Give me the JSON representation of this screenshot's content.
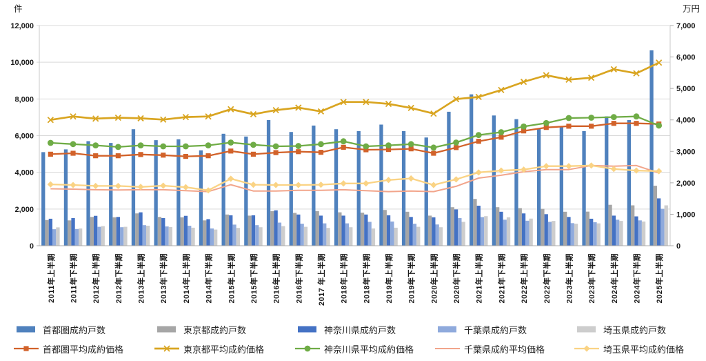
{
  "chart_data": {
    "type": "bar+line",
    "title": "",
    "left_axis": {
      "title": "件",
      "min": 0,
      "max": 12000,
      "step": 2000,
      "tick_labels": [
        "0",
        "2,000",
        "4,000",
        "6,000",
        "8,000",
        "10,000",
        "12,000"
      ]
    },
    "right_axis": {
      "title": "万円",
      "min": 0,
      "max": 7000,
      "step": 1000,
      "tick_labels": [
        "0",
        "1,000",
        "2,000",
        "3,000",
        "4,000",
        "5,000",
        "6,000",
        "7,000"
      ]
    },
    "grid": "horizontal, light gray",
    "legend_position": "bottom, two rows",
    "categories": [
      "2011年上半期",
      "2011年下半期",
      "2012年上半期",
      "2012年下半期",
      "2013年上半期",
      "2013年下半期",
      "2014年上半期",
      "2014年下半期",
      "2015年上半期",
      "2015年下半期",
      "2016年上半期",
      "2016年下半期",
      "2017 年上半期",
      "2018年上半期",
      "2018年下半期",
      "2019年上半期",
      "2019年下半期",
      "2020年上半期",
      "2020年下半期",
      "2021年上半期",
      "2021年下半期",
      "2022年上半期",
      "2022年下半期",
      "2023年上半期",
      "2023年下半期",
      "2024年上半期",
      "2024年下半期",
      "2025年上半期"
    ],
    "bar_series": [
      {
        "name": "首都圏成約戸数",
        "axis": "left",
        "color": "#4F81BD",
        "values": [
          5100,
          5250,
          5700,
          5600,
          6350,
          5750,
          5800,
          5200,
          6100,
          5950,
          6850,
          6200,
          6550,
          6350,
          6250,
          6600,
          6250,
          5900,
          7300,
          8250,
          7100,
          6900,
          6400,
          6500,
          6250,
          7050,
          6850,
          10650
        ]
      },
      {
        "name": "東京都成約戸数",
        "axis": "left",
        "color": "#A6A6A6",
        "values": [
          1400,
          1380,
          1570,
          1550,
          1760,
          1570,
          1550,
          1380,
          1700,
          1640,
          1890,
          1790,
          1890,
          1820,
          1800,
          1950,
          1850,
          1640,
          2100,
          2550,
          2100,
          2050,
          2010,
          1850,
          1860,
          2230,
          2200,
          3270
        ]
      },
      {
        "name": "神奈川県成約戸数",
        "axis": "left",
        "color": "#4472C4",
        "values": [
          1470,
          1510,
          1630,
          1570,
          1820,
          1510,
          1630,
          1450,
          1660,
          1660,
          1930,
          1700,
          1640,
          1640,
          1700,
          1660,
          1570,
          1550,
          1980,
          2180,
          1850,
          1760,
          1720,
          1570,
          1470,
          1640,
          1600,
          2580
        ]
      },
      {
        "name": "千葉県成約戸数",
        "axis": "left",
        "color": "#8FAADC",
        "values": [
          900,
          910,
          1030,
          1010,
          1120,
          1050,
          1090,
          940,
          1150,
          1120,
          1260,
          1200,
          1220,
          1220,
          1300,
          1320,
          1200,
          1160,
          1510,
          1560,
          1420,
          1360,
          1300,
          1230,
          1280,
          1420,
          1380,
          2010
        ]
      },
      {
        "name": "埼玉県成約戸数",
        "axis": "left",
        "color": "#CDCDCD",
        "values": [
          1000,
          940,
          1070,
          1030,
          1090,
          1020,
          980,
          880,
          970,
          1010,
          1070,
          1030,
          970,
          1010,
          940,
          980,
          1030,
          1010,
          1300,
          1610,
          1550,
          1480,
          1350,
          1200,
          1220,
          1350,
          1320,
          2200
        ]
      }
    ],
    "line_series": [
      {
        "name": "首都圏平均成約価格",
        "axis": "right",
        "color": "#D2622A",
        "marker": "square",
        "width": 2.3,
        "values": [
          2910,
          2940,
          2860,
          2860,
          2900,
          2880,
          2840,
          2860,
          3010,
          2910,
          2960,
          2990,
          2970,
          3130,
          3050,
          3060,
          3080,
          2940,
          3120,
          3320,
          3450,
          3650,
          3760,
          3800,
          3800,
          3890,
          3890,
          3870
        ]
      },
      {
        "name": "東京都平均成約価格",
        "axis": "right",
        "color": "#D9A521",
        "marker": "x",
        "width": 2.7,
        "values": [
          4000,
          4110,
          4040,
          4070,
          4050,
          4010,
          4090,
          4110,
          4340,
          4180,
          4310,
          4390,
          4270,
          4570,
          4570,
          4510,
          4380,
          4200,
          4660,
          4730,
          4950,
          5210,
          5420,
          5280,
          5340,
          5610,
          5480,
          5820
        ]
      },
      {
        "name": "神奈川県平均成約価格",
        "axis": "right",
        "color": "#6FAC46",
        "marker": "circle",
        "width": 2.3,
        "values": [
          3270,
          3230,
          3190,
          3140,
          3190,
          3160,
          3160,
          3190,
          3280,
          3210,
          3160,
          3170,
          3230,
          3320,
          3160,
          3190,
          3230,
          3120,
          3280,
          3520,
          3610,
          3790,
          3900,
          4060,
          4070,
          4090,
          4110,
          3820
        ]
      },
      {
        "name": "千葉県成約平均価格",
        "axis": "right",
        "color": "#F2A58B",
        "marker": "none",
        "width": 2.0,
        "values": [
          1810,
          1800,
          1780,
          1770,
          1780,
          1780,
          1750,
          1720,
          1940,
          1740,
          1740,
          1760,
          1760,
          1780,
          1750,
          1720,
          1740,
          1720,
          1890,
          2150,
          2240,
          2350,
          2420,
          2420,
          2550,
          2530,
          2550,
          2310
        ]
      },
      {
        "name": "埼玉県平均成約価格",
        "axis": "right",
        "color": "#FAD384",
        "marker": "diamond",
        "width": 2.3,
        "values": [
          1950,
          1930,
          1900,
          1900,
          1870,
          1910,
          1860,
          1760,
          2130,
          1940,
          1930,
          1930,
          1940,
          1980,
          1980,
          2090,
          2140,
          1930,
          2110,
          2330,
          2390,
          2420,
          2530,
          2530,
          2550,
          2440,
          2390,
          2370
        ]
      }
    ],
    "colors": {
      "gridline": "#D9D9D9",
      "axis_line": "#ABABAB",
      "tick_text": "#1a1a1a"
    }
  }
}
